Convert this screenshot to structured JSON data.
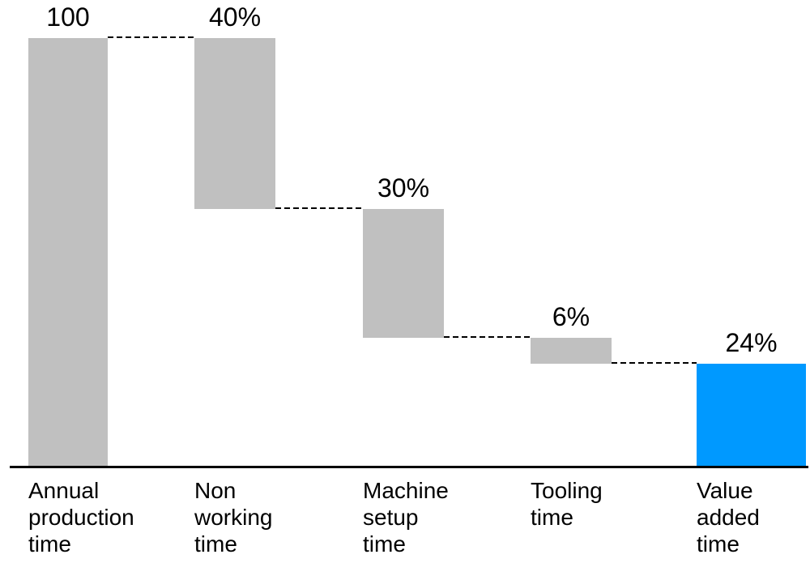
{
  "chart_data": {
    "type": "bar",
    "subtype": "waterfall",
    "title": "",
    "xlabel": "",
    "ylabel": "",
    "axis": {
      "min": 0,
      "max": 100,
      "y_axis_visible": false,
      "x_baseline_visible": true,
      "grid": false
    },
    "legend": {
      "visible": false
    },
    "connector_style": "dashed",
    "categories": [
      "Annual production time",
      "Non working time",
      "Machine setup time",
      "Tooling time",
      "Value added time"
    ],
    "values": [
      100,
      40,
      30,
      6,
      24
    ],
    "bars": [
      {
        "category": "Annual production time",
        "category_lines": [
          "Annual",
          "production",
          "time"
        ],
        "label": "100",
        "value": 100,
        "from": 0,
        "to": 100,
        "kind": "total"
      },
      {
        "category": "Non working time",
        "category_lines": [
          "Non",
          "working",
          "time"
        ],
        "label": "40%",
        "value": 40,
        "from": 60,
        "to": 100,
        "kind": "step"
      },
      {
        "category": "Machine setup time",
        "category_lines": [
          "Machine",
          "setup",
          "time"
        ],
        "label": "30%",
        "value": 30,
        "from": 30,
        "to": 60,
        "kind": "step"
      },
      {
        "category": "Tooling time",
        "category_lines": [
          "Tooling",
          "time"
        ],
        "label": "6%",
        "value": 6,
        "from": 24,
        "to": 30,
        "kind": "step"
      },
      {
        "category": "Value added time",
        "category_lines": [
          "Value",
          "added",
          "time"
        ],
        "label": "24%",
        "value": 24,
        "from": 0,
        "to": 24,
        "kind": "result"
      }
    ],
    "connector_levels": [
      100,
      60,
      30,
      24
    ],
    "colors": {
      "step_bar": "#C0C0C0",
      "result_bar": "#0099FF",
      "connector": "#000000",
      "axis": "#000000",
      "text": "#000000",
      "background": "#FFFFFF"
    }
  }
}
